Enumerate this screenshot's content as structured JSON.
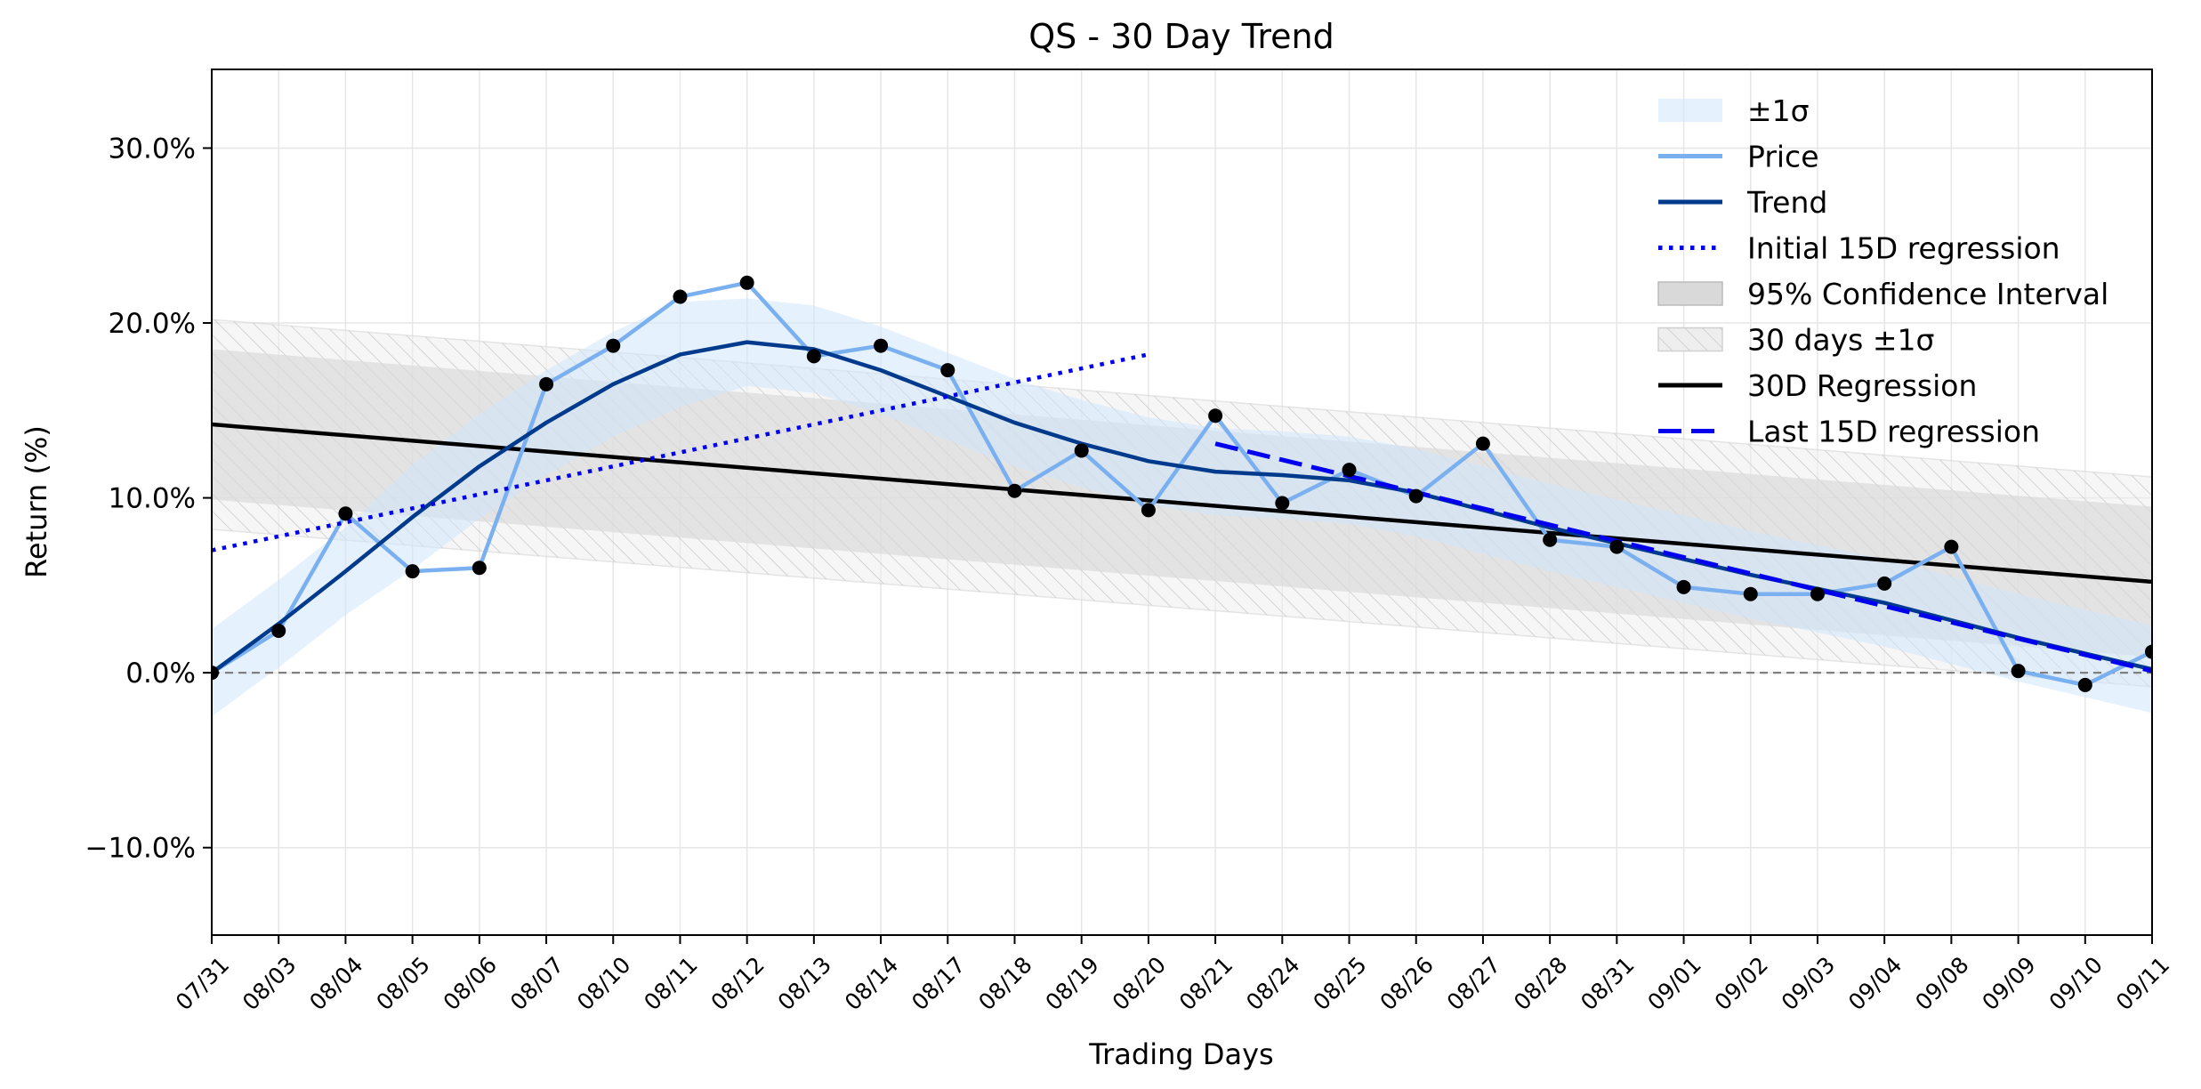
{
  "chart_data": {
    "type": "line",
    "title": "QS - 30 Day Trend",
    "xlabel": "Trading Days",
    "ylabel": "Return (%)",
    "ylim": [
      -15,
      34.5
    ],
    "yticks": [
      -10,
      0,
      10,
      20,
      30
    ],
    "ytick_labels": [
      "−10.0%",
      "0.0%",
      "10.0%",
      "20.0%",
      "30.0%"
    ],
    "grid": true,
    "legend_position": "top-right",
    "categories": [
      "07/31",
      "08/03",
      "08/04",
      "08/05",
      "08/06",
      "08/07",
      "08/10",
      "08/11",
      "08/12",
      "08/13",
      "08/14",
      "08/17",
      "08/18",
      "08/19",
      "08/20",
      "08/21",
      "08/24",
      "08/25",
      "08/26",
      "08/27",
      "08/28",
      "08/31",
      "09/01",
      "09/02",
      "09/03",
      "09/04",
      "09/08",
      "09/09",
      "09/10",
      "09/11"
    ],
    "series": [
      {
        "name": "Price",
        "color": "#7ab0f0",
        "values": [
          0.0,
          2.4,
          9.1,
          5.8,
          6.0,
          16.5,
          18.7,
          21.5,
          22.3,
          18.1,
          18.7,
          17.3,
          10.4,
          12.7,
          9.3,
          14.7,
          9.7,
          11.6,
          10.1,
          13.1,
          7.6,
          7.2,
          4.9,
          4.5,
          4.5,
          5.1,
          7.2,
          0.1,
          -0.7,
          1.2
        ]
      },
      {
        "name": "Trend",
        "color": "#003a8c",
        "values": [
          0.0,
          2.8,
          5.8,
          8.9,
          11.8,
          14.3,
          16.5,
          18.2,
          18.9,
          18.5,
          17.3,
          15.8,
          14.3,
          13.1,
          12.1,
          11.5,
          11.3,
          11.0,
          10.3,
          9.3,
          8.3,
          7.4,
          6.5,
          5.6,
          4.8,
          4.0,
          3.0,
          2.0,
          1.1,
          0.2
        ]
      },
      {
        "name": "Initial 15D regression",
        "color": "#0000ee",
        "start": [
          0,
          7.0
        ],
        "end": [
          14,
          18.2
        ]
      },
      {
        "name": "30D Regression",
        "color": "#000000",
        "start": [
          0,
          14.2
        ],
        "end": [
          29,
          5.2
        ]
      },
      {
        "name": "Last 15D regression",
        "color": "#0000ee",
        "start": [
          15,
          13.1
        ],
        "end": [
          29,
          0.1
        ]
      }
    ],
    "bands": {
      "sigma_pm1": {
        "name": "±1σ",
        "color": "#cfe5fb",
        "width": [
          2.5,
          2.5,
          2.5,
          3.0,
          3.0,
          3.0,
          3.0,
          3.0,
          2.5,
          2.5,
          2.5,
          2.5,
          2.5,
          2.5,
          2.5,
          2.5,
          2.5,
          2.5,
          2.5,
          2.5,
          2.5,
          2.5,
          2.5,
          2.5,
          2.5,
          2.5,
          2.5,
          2.5,
          2.5,
          2.5
        ]
      },
      "confidence_95": {
        "name": "95% Confidence Interval",
        "color": "#d9d9d9",
        "start_width": 4.3,
        "end_width": 4.3
      },
      "days30_sigma": {
        "name": "30 days ±1σ",
        "color": "#eeeeee",
        "width": 6.0
      }
    },
    "reference_line": {
      "y": 0,
      "style": "dashed",
      "color": "#808080"
    },
    "legend": [
      "±1σ",
      "Price",
      "Trend",
      "Initial 15D regression",
      "95% Confidence Interval",
      "30 days ±1σ",
      "30D Regression",
      "Last 15D regression"
    ]
  }
}
